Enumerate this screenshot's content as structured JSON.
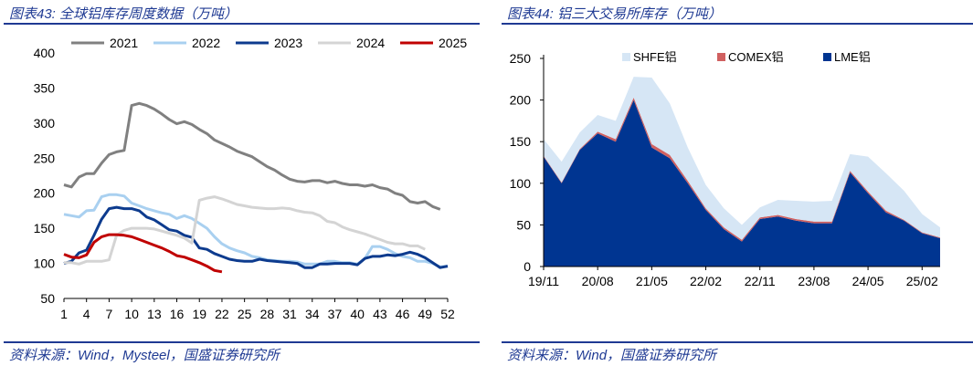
{
  "left": {
    "title": "图表43:  全球铝库存周度数据（万吨）",
    "source": "资料来源：Wind，Mysteel，国盛证券研究所"
  },
  "right": {
    "title": "图表44:  铝三大交易所库存（万吨）",
    "source": "资料来源：Wind，国盛证券研究所"
  },
  "colors": {
    "brand": "#1f3a93",
    "s2021": "#808080",
    "s2022": "#a9d0f0",
    "s2023": "#0d3b8e",
    "s2024": "#d4d4d4",
    "s2025": "#c00000",
    "shfe": "#d6e6f5",
    "comex": "#d06060",
    "lme": "#003591"
  },
  "chart_data": [
    {
      "type": "line",
      "title": "全球铝库存周度数据（万吨）",
      "x": [
        1,
        2,
        3,
        4,
        5,
        6,
        7,
        8,
        9,
        10,
        11,
        12,
        13,
        14,
        15,
        16,
        17,
        18,
        19,
        20,
        21,
        22,
        23,
        24,
        25,
        26,
        27,
        28,
        29,
        30,
        31,
        32,
        33,
        34,
        35,
        36,
        37,
        38,
        39,
        40,
        41,
        42,
        43,
        44,
        45,
        46,
        47,
        48,
        49,
        50,
        51,
        52
      ],
      "xticks": [
        1,
        4,
        7,
        10,
        13,
        16,
        19,
        22,
        25,
        28,
        31,
        34,
        37,
        40,
        43,
        46,
        49,
        52
      ],
      "ylim": [
        50,
        400
      ],
      "yticks": [
        50,
        100,
        150,
        200,
        250,
        300,
        350,
        400
      ],
      "legend": "top",
      "series": [
        {
          "name": "2021",
          "values": [
            212,
            209,
            223,
            228,
            228,
            243,
            255,
            259,
            261,
            325,
            328,
            325,
            320,
            313,
            305,
            299,
            302,
            298,
            291,
            285,
            276,
            271,
            266,
            260,
            256,
            252,
            245,
            238,
            233,
            226,
            220,
            217,
            216,
            218,
            218,
            215,
            217,
            214,
            212,
            212,
            210,
            212,
            208,
            206,
            200,
            197,
            188,
            186,
            188,
            181,
            177,
            null
          ]
        },
        {
          "name": "2022",
          "values": [
            170,
            168,
            166,
            175,
            176,
            195,
            198,
            198,
            196,
            186,
            182,
            178,
            175,
            172,
            170,
            164,
            168,
            164,
            157,
            150,
            138,
            128,
            122,
            118,
            115,
            110,
            108,
            105,
            104,
            103,
            103,
            102,
            99,
            99,
            99,
            103,
            103,
            101,
            101,
            99,
            107,
            124,
            124,
            120,
            114,
            110,
            108,
            103,
            103,
            100,
            95,
            96
          ]
        },
        {
          "name": "2023",
          "values": [
            100,
            103,
            115,
            119,
            140,
            163,
            178,
            180,
            178,
            178,
            175,
            166,
            162,
            155,
            148,
            146,
            140,
            137,
            122,
            120,
            114,
            110,
            106,
            104,
            103,
            103,
            106,
            104,
            103,
            102,
            101,
            100,
            94,
            94,
            99,
            99,
            100,
            100,
            100,
            98,
            107,
            110,
            110,
            112,
            111,
            113,
            116,
            113,
            108,
            101,
            94,
            96
          ]
        },
        {
          "name": "2024",
          "values": [
            101,
            101,
            99,
            103,
            103,
            103,
            105,
            140,
            147,
            150,
            150,
            150,
            149,
            146,
            143,
            140,
            136,
            129,
            190,
            193,
            195,
            192,
            188,
            184,
            182,
            180,
            179,
            178,
            178,
            179,
            178,
            175,
            173,
            172,
            168,
            160,
            158,
            152,
            148,
            145,
            142,
            138,
            134,
            130,
            128,
            128,
            125,
            125,
            120,
            null,
            null,
            null
          ]
        },
        {
          "name": "2025",
          "values": [
            113,
            109,
            108,
            112,
            130,
            138,
            141,
            141,
            140,
            138,
            134,
            130,
            126,
            122,
            117,
            111,
            109,
            105,
            101,
            96,
            90,
            88,
            null,
            null,
            null,
            null,
            null,
            null,
            null,
            null,
            null,
            null,
            null,
            null,
            null,
            null,
            null,
            null,
            null,
            null,
            null,
            null,
            null,
            null,
            null,
            null,
            null,
            null,
            null,
            null,
            null,
            null
          ]
        }
      ]
    },
    {
      "type": "area",
      "stacked": true,
      "title": "铝三大交易所库存（万吨）",
      "categories": [
        "19/11",
        "20/02",
        "20/05",
        "20/08",
        "20/11",
        "21/02",
        "21/05",
        "21/08",
        "21/11",
        "22/02",
        "22/05",
        "22/08",
        "22/11",
        "23/02",
        "23/05",
        "23/08",
        "23/11",
        "24/02",
        "24/05",
        "24/08",
        "24/11",
        "25/02",
        "25/05"
      ],
      "xticks": [
        "19/11",
        "20/08",
        "21/05",
        "22/02",
        "22/11",
        "23/08",
        "24/05",
        "25/02"
      ],
      "ylim": [
        0,
        250
      ],
      "yticks": [
        0,
        50,
        100,
        150,
        200,
        250
      ],
      "legend": "top",
      "series": [
        {
          "name": "LME铝",
          "values": [
            132,
            100,
            140,
            160,
            150,
            200,
            143,
            130,
            100,
            68,
            45,
            30,
            57,
            60,
            55,
            52,
            52,
            113,
            88,
            65,
            55,
            40,
            34
          ]
        },
        {
          "name": "COMEX铝",
          "values": [
            1,
            1,
            1,
            2,
            3,
            3,
            4,
            4,
            3,
            2,
            2,
            2,
            2,
            2,
            2,
            2,
            2,
            2,
            2,
            2,
            1,
            1,
            1
          ]
        },
        {
          "name": "SHFE铝",
          "values": [
            20,
            25,
            20,
            20,
            22,
            25,
            80,
            62,
            40,
            28,
            23,
            18,
            12,
            18,
            22,
            24,
            25,
            20,
            42,
            45,
            35,
            22,
            12
          ]
        }
      ]
    }
  ]
}
